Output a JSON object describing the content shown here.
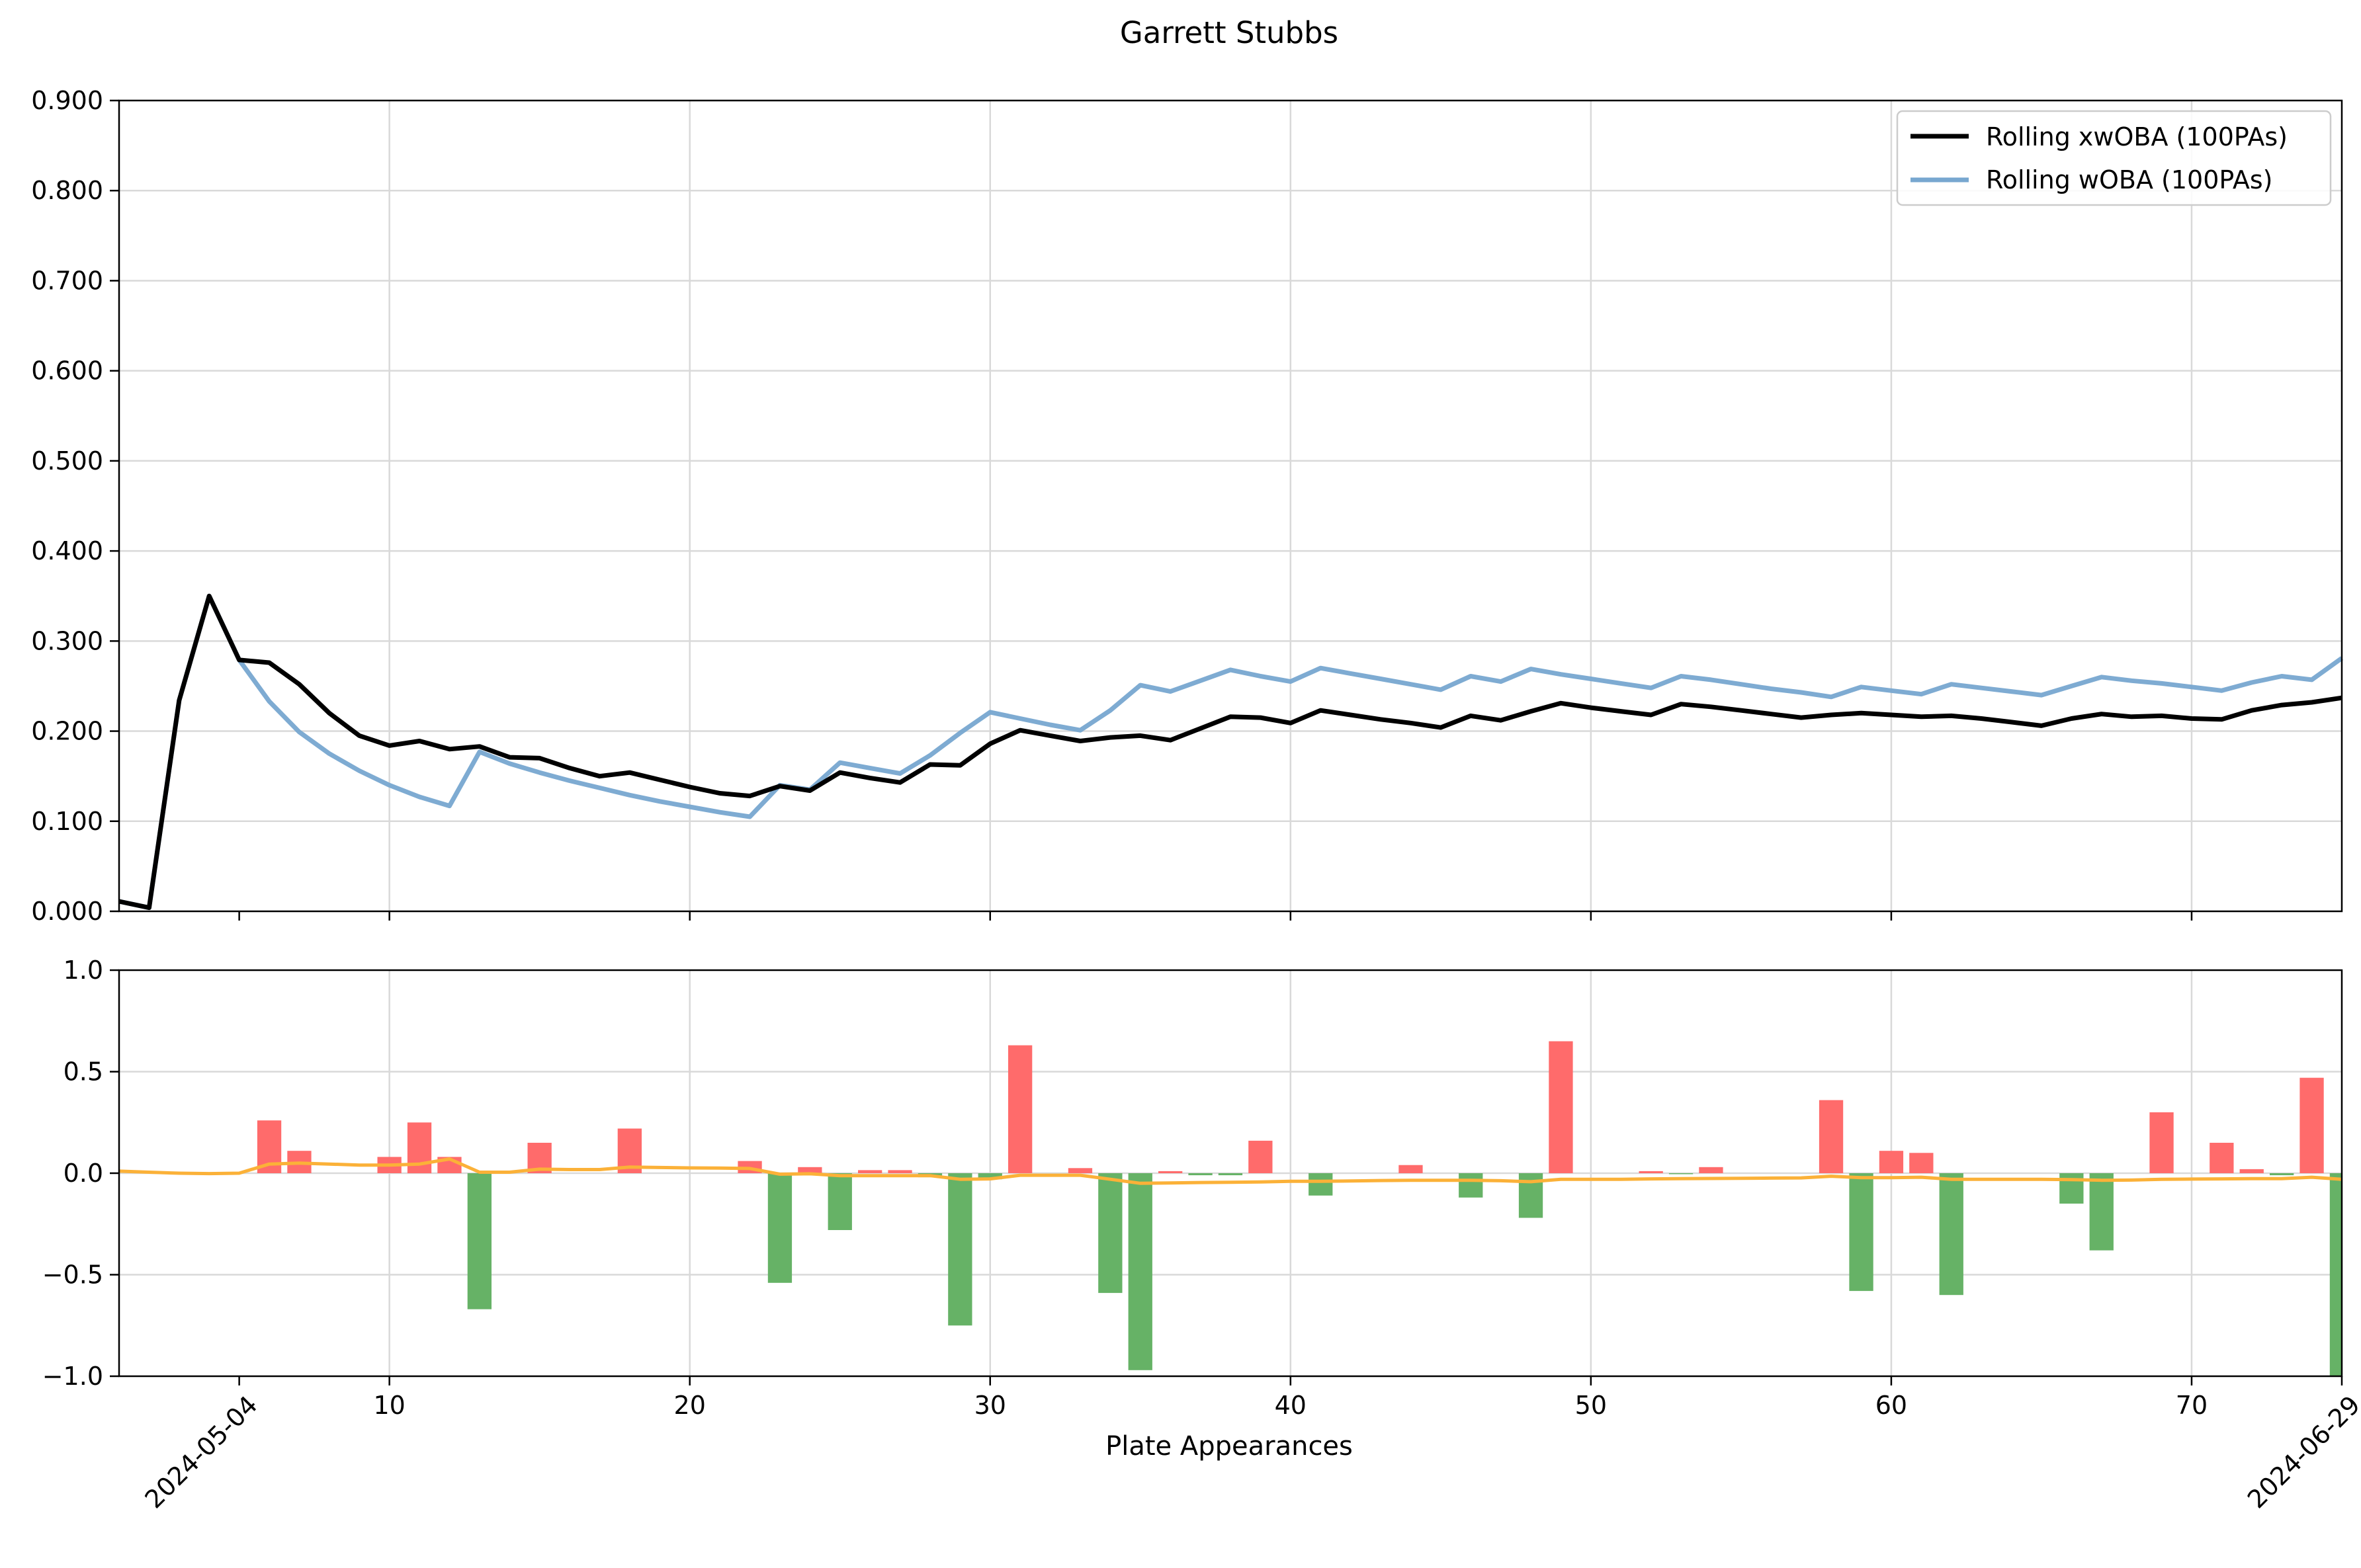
{
  "chart_data": [
    {
      "type": "line",
      "title": "Garrett Stubbs",
      "xlabel": "",
      "ylabel": "",
      "xlim": [
        1,
        75
      ],
      "ylim": [
        0,
        0.9
      ],
      "y_ticks": [
        "0.000",
        "0.100",
        "0.200",
        "0.300",
        "0.400",
        "0.500",
        "0.600",
        "0.700",
        "0.800",
        "0.900"
      ],
      "grid": true,
      "legend": "top-right",
      "x": [
        1,
        2,
        3,
        4,
        5,
        6,
        7,
        8,
        9,
        10,
        11,
        12,
        13,
        14,
        15,
        16,
        17,
        18,
        19,
        20,
        21,
        22,
        23,
        24,
        25,
        26,
        27,
        28,
        29,
        30,
        31,
        32,
        33,
        34,
        35,
        36,
        37,
        38,
        39,
        40,
        41,
        42,
        43,
        44,
        45,
        46,
        47,
        48,
        49,
        50,
        51,
        52,
        53,
        54,
        55,
        56,
        57,
        58,
        59,
        60,
        61,
        62,
        63,
        64,
        65,
        66,
        67,
        68,
        69,
        70,
        71,
        72,
        73,
        74,
        75
      ],
      "series": [
        {
          "name": "Rolling xwOBA (100PAs)",
          "color": "#000000",
          "values": [
            0.011,
            0.004,
            0.234,
            0.35,
            0.279,
            0.276,
            0.252,
            0.22,
            0.195,
            0.184,
            0.189,
            0.18,
            0.183,
            0.171,
            0.17,
            0.159,
            0.15,
            0.154,
            0.146,
            0.138,
            0.131,
            0.128,
            0.139,
            0.134,
            0.154,
            0.148,
            0.143,
            0.163,
            0.162,
            0.186,
            0.201,
            0.195,
            0.189,
            0.193,
            0.195,
            0.19,
            0.203,
            0.216,
            0.215,
            0.209,
            0.223,
            0.218,
            0.213,
            0.209,
            0.204,
            0.217,
            0.212,
            0.222,
            0.231,
            0.226,
            0.222,
            0.218,
            0.23,
            0.227,
            0.223,
            0.219,
            0.215,
            0.218,
            0.22,
            0.218,
            0.216,
            0.217,
            0.214,
            0.21,
            0.206,
            0.214,
            0.219,
            0.216,
            0.217,
            0.214,
            0.213,
            0.223,
            0.229,
            0.232,
            0.237
          ]
        },
        {
          "name": "Rolling wOBA (100PAs)",
          "color": "#77a7d0",
          "values": [
            0.011,
            0.004,
            0.234,
            0.35,
            0.279,
            0.233,
            0.199,
            0.175,
            0.156,
            0.14,
            0.127,
            0.117,
            0.177,
            0.164,
            0.154,
            0.145,
            0.137,
            0.129,
            0.122,
            0.116,
            0.11,
            0.105,
            0.14,
            0.135,
            0.165,
            0.159,
            0.153,
            0.173,
            0.198,
            0.221,
            0.214,
            0.207,
            0.201,
            0.223,
            0.251,
            0.244,
            0.256,
            0.268,
            0.261,
            0.255,
            0.27,
            0.264,
            0.258,
            0.252,
            0.246,
            0.261,
            0.255,
            0.269,
            0.263,
            0.258,
            0.253,
            0.248,
            0.261,
            0.257,
            0.252,
            0.247,
            0.243,
            0.238,
            0.249,
            0.245,
            0.241,
            0.252,
            0.248,
            0.244,
            0.24,
            0.25,
            0.26,
            0.256,
            0.253,
            0.249,
            0.245,
            0.254,
            0.261,
            0.257,
            0.281
          ]
        }
      ]
    },
    {
      "type": "bar",
      "xlabel": "Plate Appearances",
      "ylabel": "",
      "xlim": [
        1,
        75
      ],
      "ylim": [
        -1.0,
        1.0
      ],
      "y_ticks": [
        "−1.0",
        "−0.5",
        "0.0",
        "0.5",
        "1.0"
      ],
      "x_ticks": [
        "10",
        "20",
        "30",
        "40",
        "50",
        "60",
        "70"
      ],
      "x_tick_values": [
        10,
        20,
        30,
        40,
        50,
        60,
        70
      ],
      "date_labels": [
        {
          "x": 5,
          "text": "2024-05-04"
        },
        {
          "x": 75,
          "text": "2024-06-29"
        }
      ],
      "grid": true,
      "positive_color": "#ff6b6b",
      "negative_color": "#66b266",
      "line_color": "#fbb138",
      "bars": {
        "x": [
          6,
          7,
          10,
          11,
          12,
          13,
          15,
          18,
          22,
          23,
          24,
          25,
          26,
          27,
          28,
          29,
          30,
          31,
          33,
          34,
          35,
          36,
          37,
          38,
          39,
          41,
          44,
          46,
          48,
          49,
          52,
          53,
          54,
          58,
          59,
          60,
          61,
          62,
          66,
          67,
          69,
          71,
          72,
          73,
          74,
          75
        ],
        "values": [
          0.26,
          0.11,
          0.08,
          0.25,
          0.08,
          -0.67,
          0.15,
          0.22,
          0.06,
          -0.54,
          0.03,
          -0.28,
          0.015,
          0.015,
          -0.02,
          -0.75,
          -0.03,
          0.63,
          0.025,
          -0.59,
          -0.97,
          0.01,
          -0.01,
          -0.01,
          0.16,
          -0.11,
          0.04,
          -0.12,
          -0.22,
          0.65,
          0.01,
          -0.005,
          0.03,
          0.36,
          -0.58,
          0.11,
          0.1,
          -0.6,
          -0.15,
          -0.38,
          0.3,
          0.15,
          0.02,
          -0.01,
          0.47,
          -1.0
        ]
      },
      "line": {
        "x": [
          1,
          2,
          3,
          4,
          5,
          6,
          7,
          8,
          9,
          10,
          11,
          12,
          13,
          14,
          15,
          16,
          17,
          18,
          19,
          20,
          21,
          22,
          23,
          24,
          25,
          26,
          27,
          28,
          29,
          30,
          31,
          32,
          33,
          34,
          35,
          36,
          37,
          38,
          39,
          40,
          41,
          42,
          43,
          44,
          45,
          46,
          47,
          48,
          49,
          50,
          51,
          52,
          53,
          54,
          55,
          56,
          57,
          58,
          59,
          60,
          61,
          62,
          63,
          64,
          65,
          66,
          67,
          68,
          69,
          70,
          71,
          72,
          73,
          74,
          75
        ],
        "values": [
          0.01,
          0.005,
          0.0,
          -0.002,
          0.0,
          0.045,
          0.05,
          0.045,
          0.04,
          0.04,
          0.045,
          0.07,
          0.005,
          0.005,
          0.02,
          0.018,
          0.018,
          0.03,
          0.028,
          0.026,
          0.025,
          0.023,
          -0.005,
          -0.003,
          -0.012,
          -0.012,
          -0.012,
          -0.012,
          -0.03,
          -0.028,
          -0.01,
          -0.01,
          -0.01,
          -0.03,
          -0.05,
          -0.048,
          -0.046,
          -0.045,
          -0.043,
          -0.04,
          -0.04,
          -0.038,
          -0.036,
          -0.035,
          -0.035,
          -0.035,
          -0.037,
          -0.042,
          -0.03,
          -0.03,
          -0.03,
          -0.028,
          -0.027,
          -0.026,
          -0.025,
          -0.024,
          -0.023,
          -0.015,
          -0.022,
          -0.022,
          -0.02,
          -0.03,
          -0.03,
          -0.03,
          -0.03,
          -0.032,
          -0.035,
          -0.034,
          -0.03,
          -0.029,
          -0.028,
          -0.027,
          -0.027,
          -0.02,
          -0.03
        ]
      }
    }
  ]
}
